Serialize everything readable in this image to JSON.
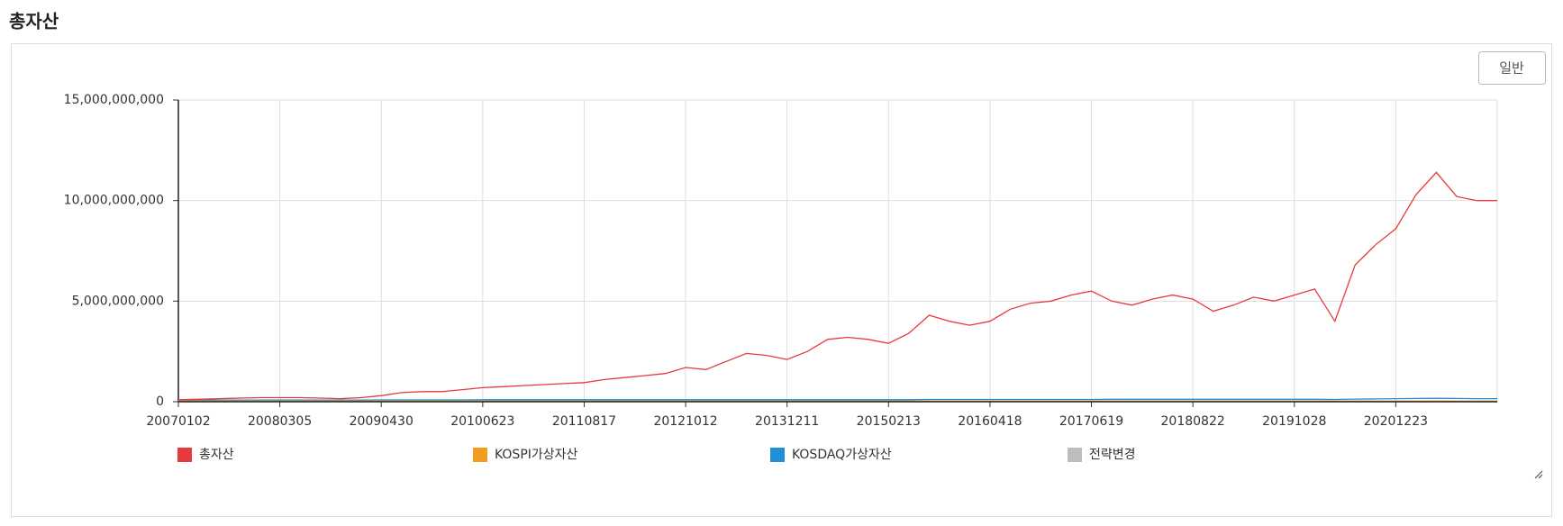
{
  "page": {
    "title": "총자산",
    "button": "일반"
  },
  "chart_data": {
    "type": "line",
    "categories": [
      "20070102",
      null,
      null,
      null,
      null,
      "20080305",
      null,
      null,
      null,
      null,
      "20090430",
      null,
      null,
      null,
      null,
      "20100623",
      null,
      null,
      null,
      null,
      "20110817",
      null,
      null,
      null,
      null,
      "20121012",
      null,
      null,
      null,
      null,
      "20131211",
      null,
      null,
      null,
      null,
      "20150213",
      null,
      null,
      null,
      null,
      "20160418",
      null,
      null,
      null,
      null,
      "20170619",
      null,
      null,
      null,
      null,
      "20180822",
      null,
      null,
      null,
      null,
      "20191028",
      null,
      null,
      null,
      null,
      "20201223",
      null,
      null,
      null,
      null,
      null
    ],
    "series": [
      {
        "name": "총자산",
        "color": "#e8393d",
        "values": [
          100000000.0,
          120000000.0,
          150000000.0,
          180000000.0,
          200000000.0,
          200000000.0,
          200000000.0,
          180000000.0,
          150000000.0,
          200000000.0,
          300000000.0,
          450000000.0,
          500000000.0,
          500000000.0,
          600000000.0,
          700000000.0,
          750000000.0,
          800000000.0,
          850000000.0,
          900000000.0,
          950000000.0,
          1100000000.0,
          1200000000.0,
          1300000000.0,
          1400000000.0,
          1700000000.0,
          1600000000.0,
          2000000000.0,
          2400000000.0,
          2300000000.0,
          2100000000.0,
          2500000000.0,
          3100000000.0,
          3200000000.0,
          3100000000.0,
          2900000000.0,
          3400000000.0,
          4300000000.0,
          4000000000.0,
          3800000000.0,
          4000000000.0,
          4600000000.0,
          4900000000.0,
          5000000000.0,
          5300000000.0,
          5500000000.0,
          5000000000.0,
          4800000000.0,
          5100000000.0,
          5300000000.0,
          5100000000.0,
          4500000000.0,
          4800000000.0,
          5200000000.0,
          5000000000.0,
          5300000000.0,
          5600000000.0,
          4000000000.0,
          6800000000.0,
          7800000000.0,
          8600000000.0,
          10300000000.0,
          11400000000.0,
          10200000000.0,
          10000000000.0,
          10000000000.0
        ]
      },
      {
        "name": "KOSPI가상자산",
        "color": "#f39c1f",
        "values": [
          30000000.0,
          30000000.0,
          30000000.0,
          30000000.0,
          30000000.0,
          30000000.0,
          30000000.0,
          30000000.0,
          30000000.0,
          30000000.0,
          30000000.0,
          30000000.0,
          30000000.0,
          30000000.0,
          30000000.0,
          30000000.0,
          30000000.0,
          30000000.0,
          30000000.0,
          30000000.0,
          30000000.0,
          30000000.0,
          30000000.0,
          30000000.0,
          30000000.0,
          30000000.0,
          30000000.0,
          30000000.0,
          30000000.0,
          30000000.0,
          30000000.0,
          30000000.0,
          30000000.0,
          30000000.0,
          30000000.0,
          30000000.0,
          30000000.0,
          30000000.0,
          30000000.0,
          30000000.0,
          30000000.0,
          30000000.0,
          30000000.0,
          30000000.0,
          30000000.0,
          30000000.0,
          30000000.0,
          30000000.0,
          30000000.0,
          30000000.0,
          30000000.0,
          30000000.0,
          30000000.0,
          30000000.0,
          30000000.0,
          30000000.0,
          30000000.0,
          30000000.0,
          30000000.0,
          30000000.0,
          30000000.0,
          30000000.0,
          30000000.0,
          30000000.0,
          30000000.0,
          30000000.0
        ]
      },
      {
        "name": "KOSDAQ가상자산",
        "color": "#1f8fd6",
        "values": [
          80000000.0,
          80000000.0,
          80000000.0,
          80000000.0,
          80000000.0,
          80000000.0,
          80000000.0,
          80000000.0,
          80000000.0,
          80000000.0,
          90000000.0,
          90000000.0,
          90000000.0,
          90000000.0,
          90000000.0,
          100000000.0,
          100000000.0,
          100000000.0,
          100000000.0,
          100000000.0,
          100000000.0,
          100000000.0,
          100000000.0,
          100000000.0,
          100000000.0,
          100000000.0,
          100000000.0,
          100000000.0,
          100000000.0,
          100000000.0,
          100000000.0,
          100000000.0,
          100000000.0,
          100000000.0,
          100000000.0,
          100000000.0,
          100000000.0,
          110000000.0,
          110000000.0,
          110000000.0,
          110000000.0,
          110000000.0,
          110000000.0,
          110000000.0,
          110000000.0,
          110000000.0,
          120000000.0,
          120000000.0,
          120000000.0,
          120000000.0,
          120000000.0,
          120000000.0,
          120000000.0,
          120000000.0,
          120000000.0,
          120000000.0,
          120000000.0,
          110000000.0,
          130000000.0,
          140000000.0,
          150000000.0,
          160000000.0,
          170000000.0,
          160000000.0,
          150000000.0,
          150000000.0
        ]
      },
      {
        "name": "전략변경",
        "color": "#bdbdbd",
        "values": [
          null,
          null,
          null,
          null,
          null,
          null,
          null,
          null,
          null,
          null,
          null,
          null,
          null,
          null,
          null,
          null,
          null,
          null,
          null,
          null,
          null,
          null,
          null,
          null,
          null,
          null,
          null,
          null,
          null,
          null,
          null,
          null,
          null,
          null,
          null,
          null,
          null,
          null,
          null,
          null,
          null,
          null,
          null,
          null,
          null,
          null,
          null,
          null,
          null,
          null,
          null,
          null,
          null,
          null,
          null,
          null,
          null,
          null,
          null,
          null,
          null,
          null,
          null,
          null,
          null,
          null
        ]
      }
    ],
    "ylim": [
      0,
      15000000000
    ],
    "yticks": [
      0,
      {
        "value": 5000000000,
        "label": "5,000,000,000"
      },
      {
        "value": 10000000000,
        "label": "10,000,000,000"
      },
      {
        "value": 15000000000,
        "label": "15,000,000,000"
      }
    ],
    "grid": true
  }
}
